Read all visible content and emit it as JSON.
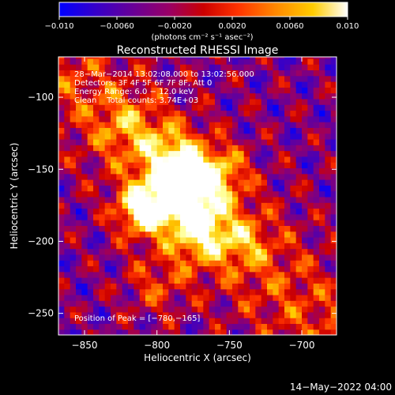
{
  "chart_data": {
    "type": "heatmap",
    "title": "Reconstructed RHESSI Image",
    "xlabel": "Heliocentric X (arcsec)",
    "ylabel": "Heliocentric Y (arcsec)",
    "xlim": [
      -868,
      -676
    ],
    "ylim": [
      -265,
      -72
    ],
    "x_ticks": [
      -850,
      -800,
      -750,
      -700
    ],
    "x_tick_labels": [
      "−850",
      "−800",
      "−750",
      "−700"
    ],
    "y_ticks": [
      -100,
      -150,
      -200,
      -250
    ],
    "y_tick_labels": [
      "−100",
      "−150",
      "−200",
      "−250"
    ],
    "colorbar": {
      "range": [
        -0.01,
        0.01
      ],
      "ticks": [
        -0.01,
        -0.006,
        -0.002,
        0.002,
        0.006,
        0.01
      ],
      "tick_labels": [
        "−0.010",
        "−0.0060",
        "−0.0020",
        "0.0020",
        "0.0060",
        "0.010"
      ],
      "unit_label": "(photons cm⁻² s⁻¹ asec⁻²)"
    },
    "annotations": [
      "28−Mar−2014 13:02:08.000 to 13:02:56.000",
      "Detectors: 3F 4F 5F 6F 7F 8F, Att 0",
      "Energy Range: 6.0 − 12.0 keV",
      "Clean    Total counts: 3.74E+03"
    ],
    "peak_label": "Position of Peak = [−780,−165]",
    "peak": [
      -780,
      -165
    ],
    "colormap_stops": [
      "#0000ff",
      "#3300cc",
      "#660099",
      "#990066",
      "#cc0000",
      "#ff3300",
      "#ff8800",
      "#ffcc00",
      "#ffff99",
      "#ffffff"
    ],
    "grid": false
  },
  "footer": {
    "date": "14−May−2022 04:00"
  }
}
